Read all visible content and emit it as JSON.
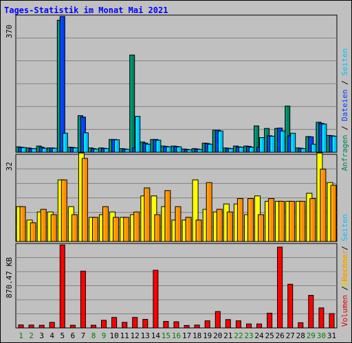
{
  "chart_data": {
    "type": "bar",
    "title": "Tages-Statistik im Monat Mai 2021",
    "colors": {
      "background": "#c0c0c0",
      "plot": "#c0c0c0",
      "gridline": "#808080",
      "title": "#0000ff",
      "weekday_tick": "#000000",
      "weekend_tick": "#008000"
    },
    "categories": [
      "1",
      "2",
      "3",
      "4",
      "5",
      "6",
      "7",
      "8",
      "9",
      "10",
      "11",
      "12",
      "13",
      "14",
      "15",
      "16",
      "17",
      "18",
      "19",
      "20",
      "21",
      "22",
      "23",
      "24",
      "25",
      "26",
      "27",
      "28",
      "29",
      "30",
      "31"
    ],
    "weekend_days": [
      "1",
      "2",
      "8",
      "9",
      "15",
      "16",
      "22",
      "23",
      "29",
      "30"
    ],
    "panels": [
      {
        "id": "top",
        "ymax_label": "370",
        "ylim": [
          0,
          370
        ],
        "side_label_parts": [
          {
            "text": "Anfragen",
            "color": "#008060"
          },
          {
            "text": " / ",
            "color": "#000000"
          },
          {
            "text": "Dateien",
            "color": "#0040ff"
          },
          {
            "text": " / ",
            "color": "#000000"
          },
          {
            "text": "Seiten",
            "color": "#00c0ff"
          }
        ],
        "series": [
          {
            "name": "Anfragen",
            "color": "#008060",
            "values": [
              15,
              12,
              17,
              12,
              360,
              14,
              100,
              12,
              12,
              35,
              10,
              265,
              28,
              35,
              17,
              17,
              9,
              10,
              25,
              60,
              12,
              17,
              17,
              72,
              65,
              65,
              126,
              12,
              43,
              82,
              46
            ]
          },
          {
            "name": "Dateien",
            "color": "#0040ff",
            "values": [
              14,
              10,
              14,
              12,
              370,
              13,
              96,
              10,
              11,
              35,
              9,
              12,
              25,
              35,
              16,
              16,
              8,
              9,
              24,
              60,
              11,
              15,
              16,
              14,
              45,
              66,
              45,
              11,
              42,
              79,
              45
            ]
          },
          {
            "name": "Seiten",
            "color": "#00c0ff",
            "values": [
              13,
              10,
              11,
              11,
              52,
              12,
              53,
              9,
              10,
              34,
              8,
              98,
              22,
              33,
              15,
              15,
              7,
              8,
              22,
              58,
              10,
              14,
              14,
              40,
              44,
              58,
              52,
              10,
              22,
              77,
              44
            ]
          }
        ]
      },
      {
        "id": "mid",
        "ymax_label": "32",
        "ylim": [
          0,
          32
        ],
        "side_label_parts": [
          {
            "text": "Besuche",
            "color": "#e0d000"
          },
          {
            "text": " / ",
            "color": "#000000"
          },
          {
            "text": "Seiten",
            "color": "#00c0ff"
          }
        ],
        "series": [
          {
            "name": "Besuche",
            "color": "#ffff00",
            "values": [
              13,
              8,
              11,
              11,
              23,
              13,
              33,
              9,
              10,
              11,
              9,
              10,
              17,
              17,
              13,
              8,
              8,
              23,
              12,
              11,
              14,
              14,
              10,
              17,
              15,
              15,
              15,
              15,
              18,
              33,
              22
            ]
          },
          {
            "name": "Rechner",
            "color": "#ff8c00",
            "values": [
              13,
              7,
              12,
              10,
              23,
              10,
              31,
              9,
              13,
              9,
              9,
              11,
              20,
              10,
              19,
              13,
              9,
              8,
              22,
              12,
              11,
              16,
              16,
              10,
              16,
              15,
              15,
              15,
              16,
              27,
              21
            ]
          }
        ]
      },
      {
        "id": "bot",
        "ymax_label": "870.47 KB",
        "ylim": [
          0,
          870.47
        ],
        "side_label_parts": [
          {
            "text": "Volumen",
            "color": "#e00000"
          },
          {
            "text": " / ",
            "color": "#000000"
          },
          {
            "text": "Rechner",
            "color": "#ff8c00"
          }
        ],
        "series": [
          {
            "name": "Volumen",
            "color": "#ff0000",
            "values": [
              32,
              30,
              28,
              58,
              870,
              28,
              596,
              28,
              80,
              110,
              58,
              110,
              90,
              605,
              68,
              65,
              26,
              30,
              75,
              172,
              88,
              75,
              42,
              42,
              155,
              848,
              458,
              55,
              342,
              210,
              150
            ]
          }
        ]
      }
    ]
  }
}
